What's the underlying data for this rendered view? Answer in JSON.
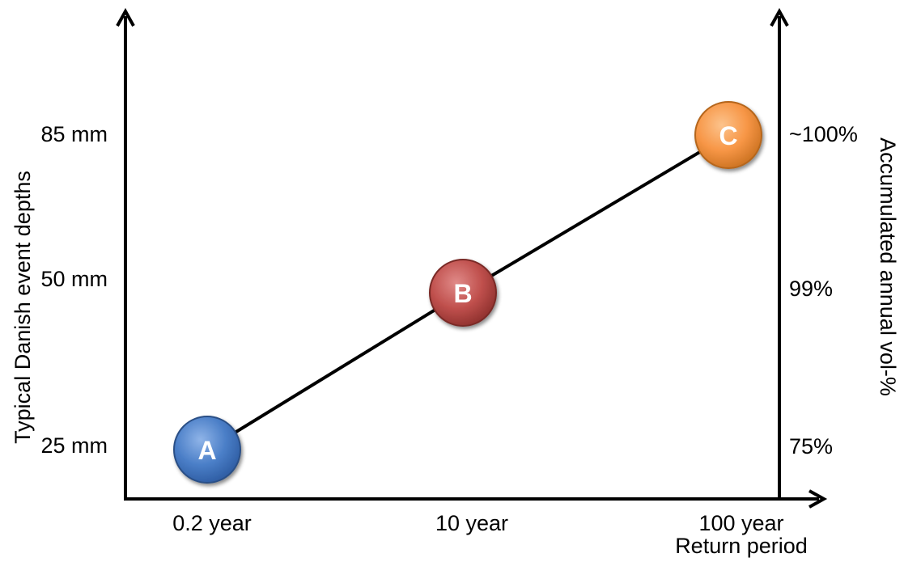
{
  "diagram": {
    "left_axis": {
      "title": "Typical Danish event depths",
      "ticks": [
        "85 mm",
        "50 mm",
        "25 mm"
      ]
    },
    "right_axis": {
      "title": "Accumulated annual vol-%",
      "ticks": [
        "~100%",
        "99%",
        "75%"
      ]
    },
    "x_axis": {
      "title": "Return period",
      "ticks": [
        "0.2 year",
        "10 year",
        "100 year"
      ]
    },
    "points": [
      {
        "label": "A",
        "color": "#4a7ec7",
        "return_period": "0.2 year",
        "depth": "25 mm",
        "volume": "75%"
      },
      {
        "label": "B",
        "color": "#c0504d",
        "return_period": "10 year",
        "depth": "50 mm",
        "volume": "99%"
      },
      {
        "label": "C",
        "color": "#f79646",
        "return_period": "100 year",
        "depth": "85 mm",
        "volume": "~100%"
      }
    ]
  }
}
